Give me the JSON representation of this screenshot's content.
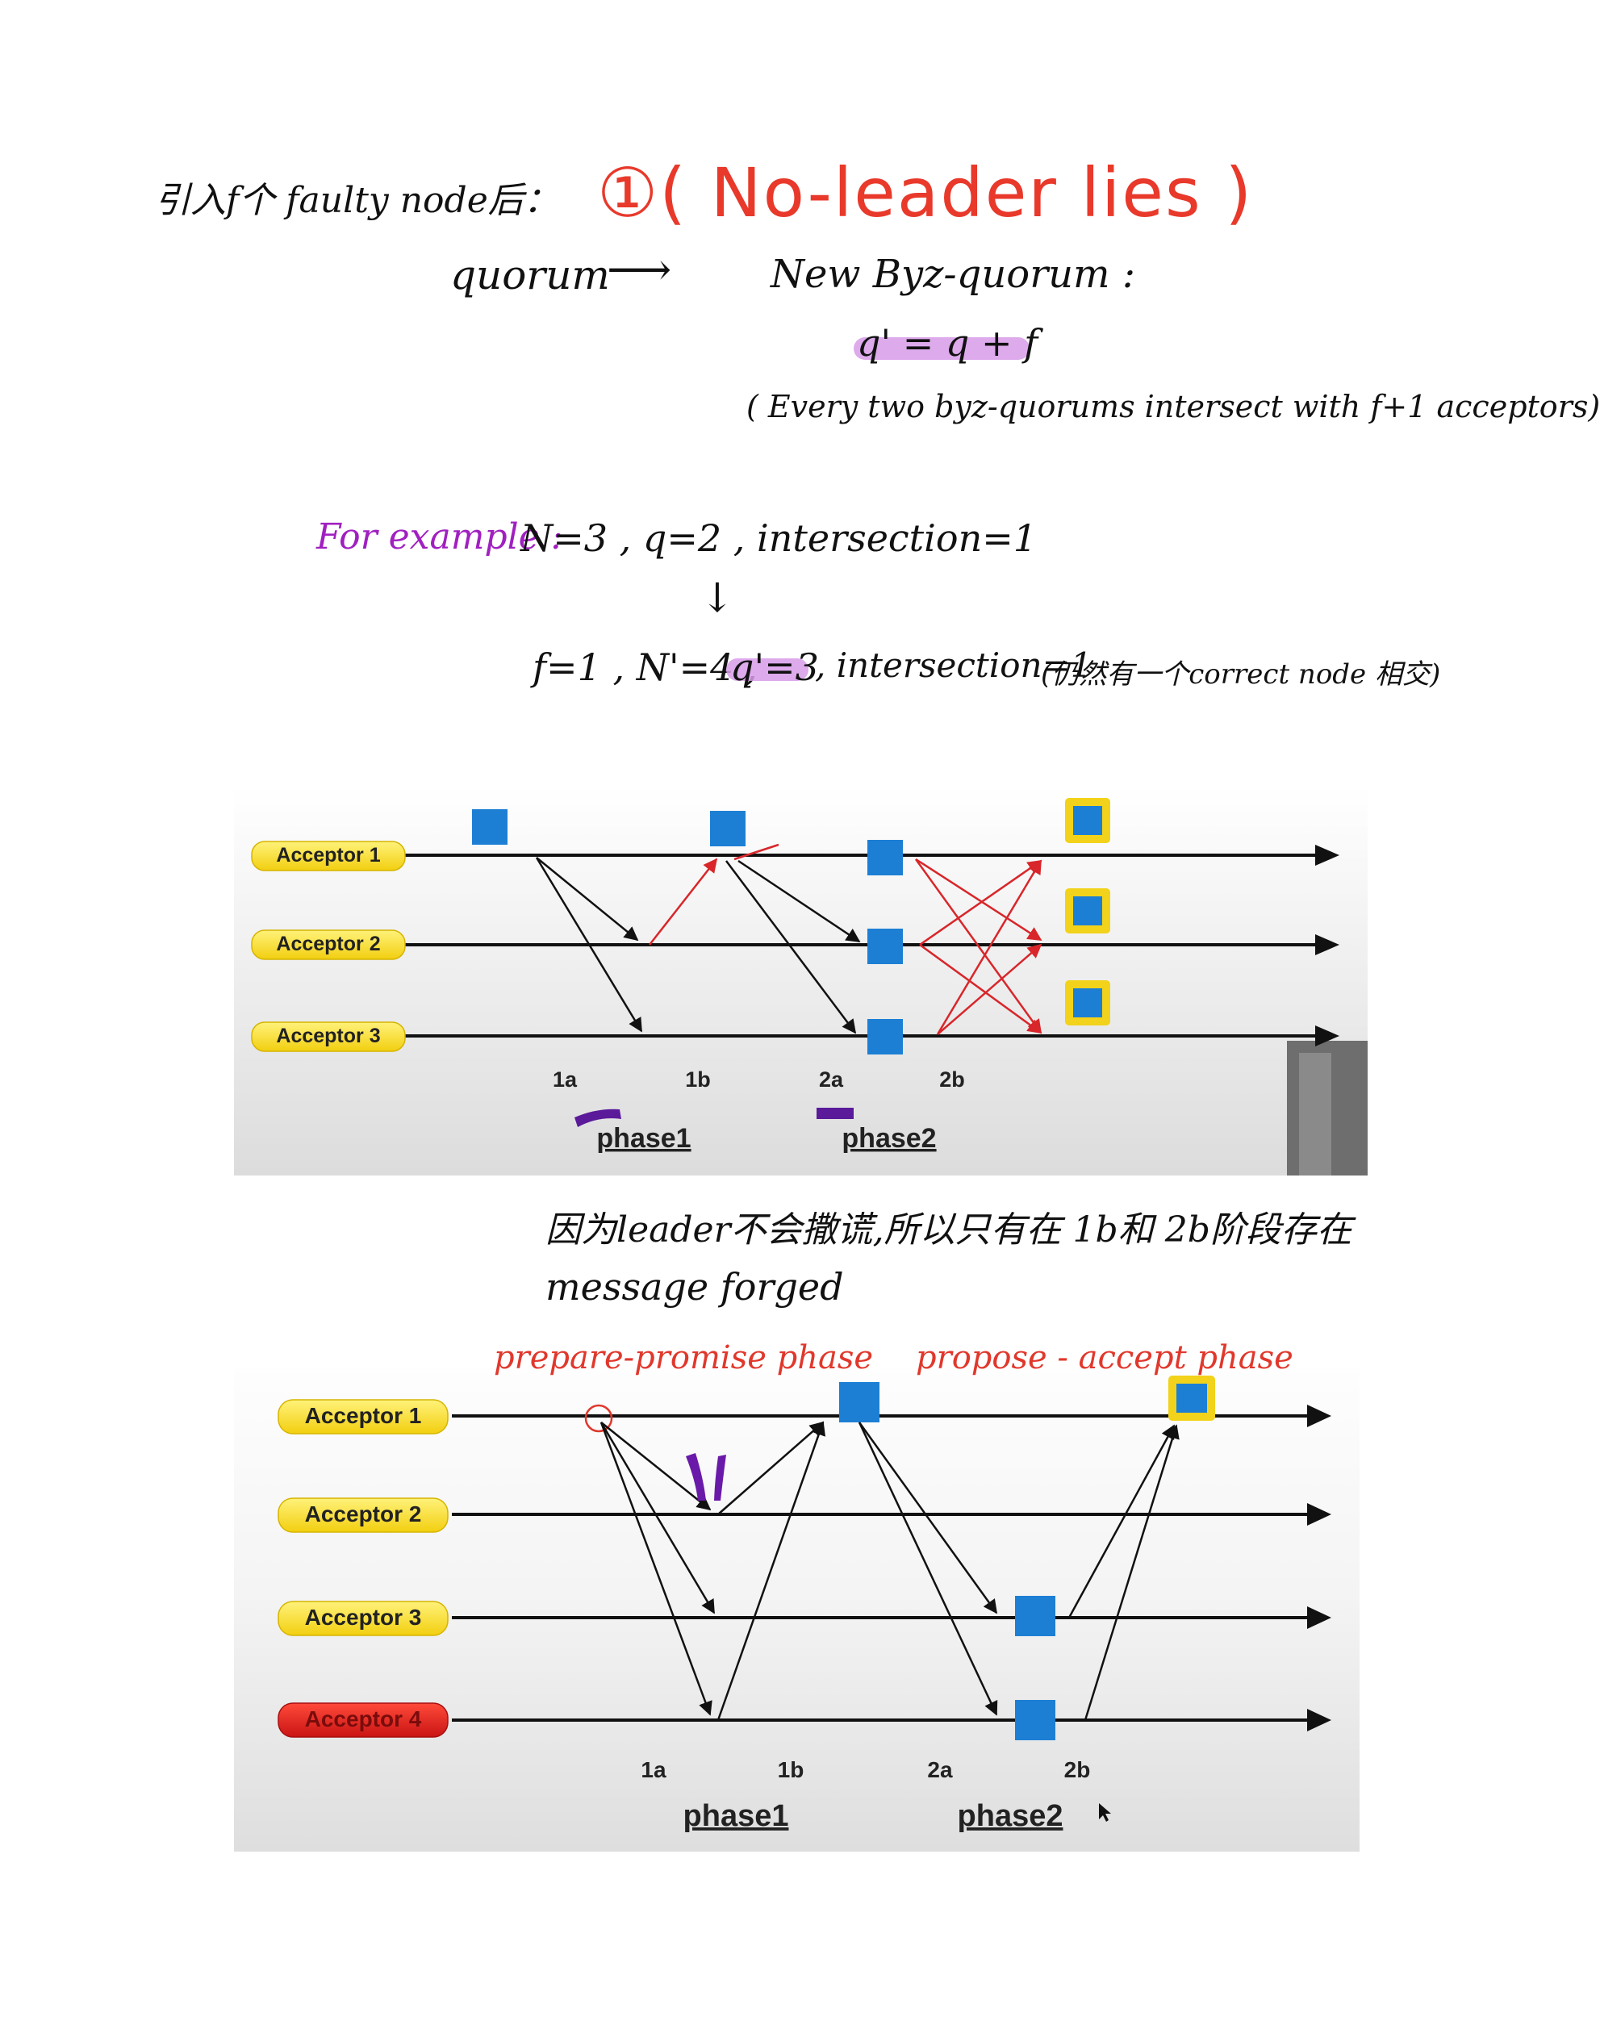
{
  "notes": {
    "line1_prefix": "引入f个 faulty node后：",
    "title": "①( No-leader lies )",
    "quorum_left": "quorum",
    "arrow": "⟶",
    "quorum_right": "New Byz-quorum :",
    "formula": "q' = q + f",
    "intersect_note": "( Every two byz-quorums intersect with f+1 acceptors)",
    "example_label": "For example :",
    "example_line1": "N=3 , q=2 , intersection=1",
    "down_arrow": "↓",
    "example_line2_a": "f=1 , N'=4 ,",
    "example_line2_q": "q'=3",
    "example_line2_b": ", intersection=1",
    "example_line2_c": "(仍然有一个correct node 相交)",
    "explain_line1": "因为leader不会撒谎,所以只有在 1b和 2b阶段存在",
    "explain_line2": "message forged",
    "annot_prepare": "prepare-promise phase",
    "annot_propose": "propose - accept phase"
  },
  "diagram1": {
    "acceptors": [
      "Acceptor 1",
      "Acceptor 2",
      "Acceptor 3"
    ],
    "steps": [
      "1a",
      "1b",
      "2a",
      "2b"
    ],
    "phases": [
      "phase1",
      "phase2"
    ],
    "colors": {
      "label_fill": "#f5dd1c",
      "node": "#1d7fd4",
      "forged_arrow": "#d8262a",
      "accepted_border": "#f2d21a"
    }
  },
  "diagram2": {
    "acceptors": [
      "Acceptor 1",
      "Acceptor 2",
      "Acceptor 3",
      "Acceptor 4"
    ],
    "faulty_acceptor": "Acceptor 4",
    "steps": [
      "1a",
      "1b",
      "2a",
      "2b"
    ],
    "phases": [
      "phase1",
      "phase2"
    ],
    "colors": {
      "label_fill": "#f5dd1c",
      "faulty_fill": "#dd1f1f",
      "node": "#1d7fd4"
    }
  }
}
